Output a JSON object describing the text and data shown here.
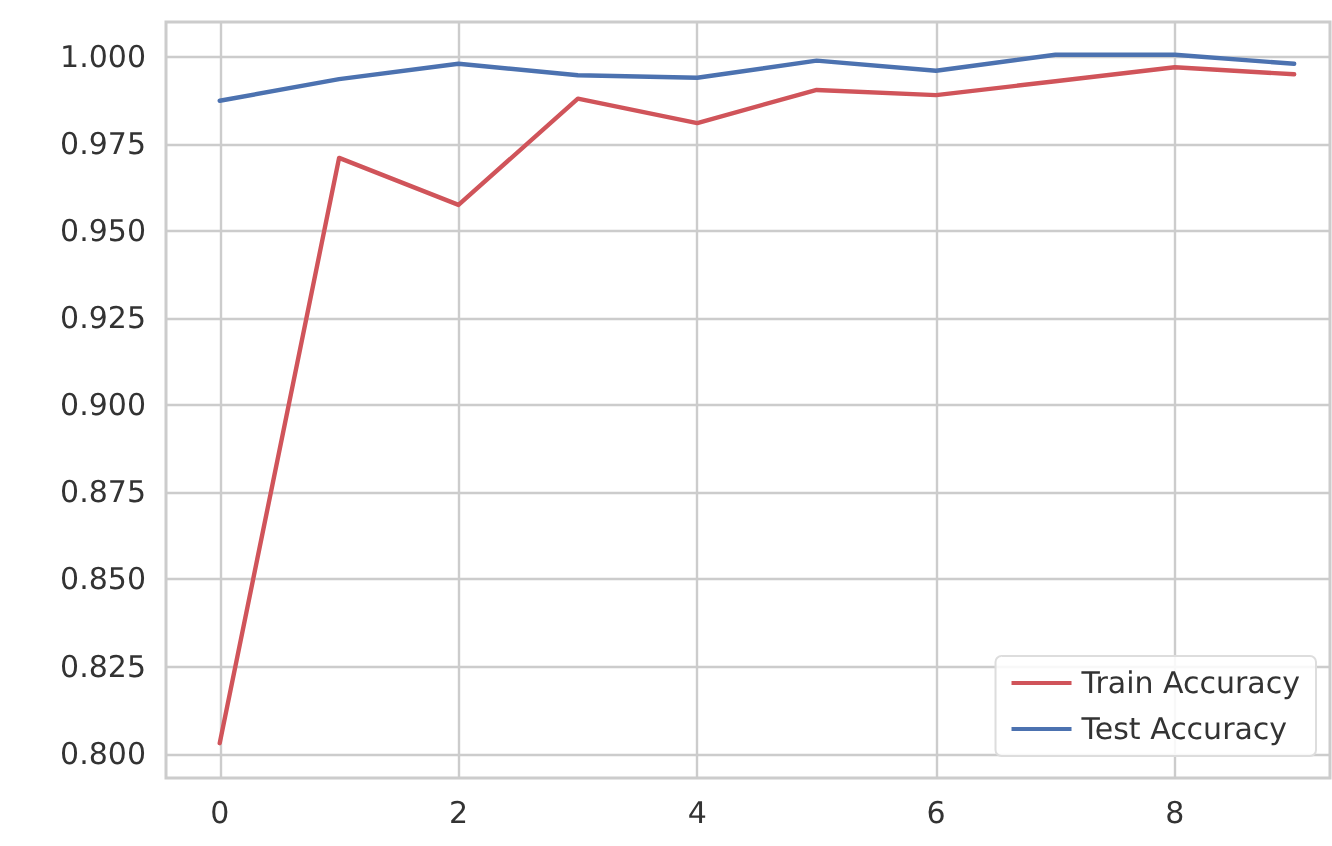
{
  "chart_data": {
    "type": "line",
    "x": [
      0,
      1,
      2,
      3,
      4,
      5,
      6,
      7,
      8,
      9
    ],
    "series": [
      {
        "name": "Train Accuracy",
        "color": "#d0545a",
        "values": [
          0.803,
          0.971,
          0.9575,
          0.988,
          0.981,
          0.9905,
          0.989,
          0.993,
          0.997,
          0.995
        ]
      },
      {
        "name": "Test Accuracy",
        "color": "#4c72b0",
        "values": [
          0.9874,
          0.9936,
          0.998,
          0.9947,
          0.994,
          0.9989,
          0.996,
          1.0006,
          1.0006,
          0.998
        ]
      }
    ],
    "xlim": [
      -0.45,
      9.3
    ],
    "xticks": [
      0,
      2,
      4,
      6,
      8
    ],
    "ylim": [
      0.793,
      1.01
    ],
    "yticks": [
      {
        "value": 0.8,
        "label": "0.800"
      },
      {
        "value": 0.825,
        "label": "0.825"
      },
      {
        "value": 0.85,
        "label": "0.850"
      },
      {
        "value": 0.875,
        "label": "0.875"
      },
      {
        "value": 0.9,
        "label": "0.900"
      },
      {
        "value": 0.925,
        "label": "0.925"
      },
      {
        "value": 0.95,
        "label": "0.950"
      },
      {
        "value": 0.975,
        "label": "0.975"
      },
      {
        "value": 1.0,
        "label": "1.000"
      }
    ],
    "grid": true,
    "legend": "bottom right",
    "line_style": "solid",
    "marker": "none"
  }
}
